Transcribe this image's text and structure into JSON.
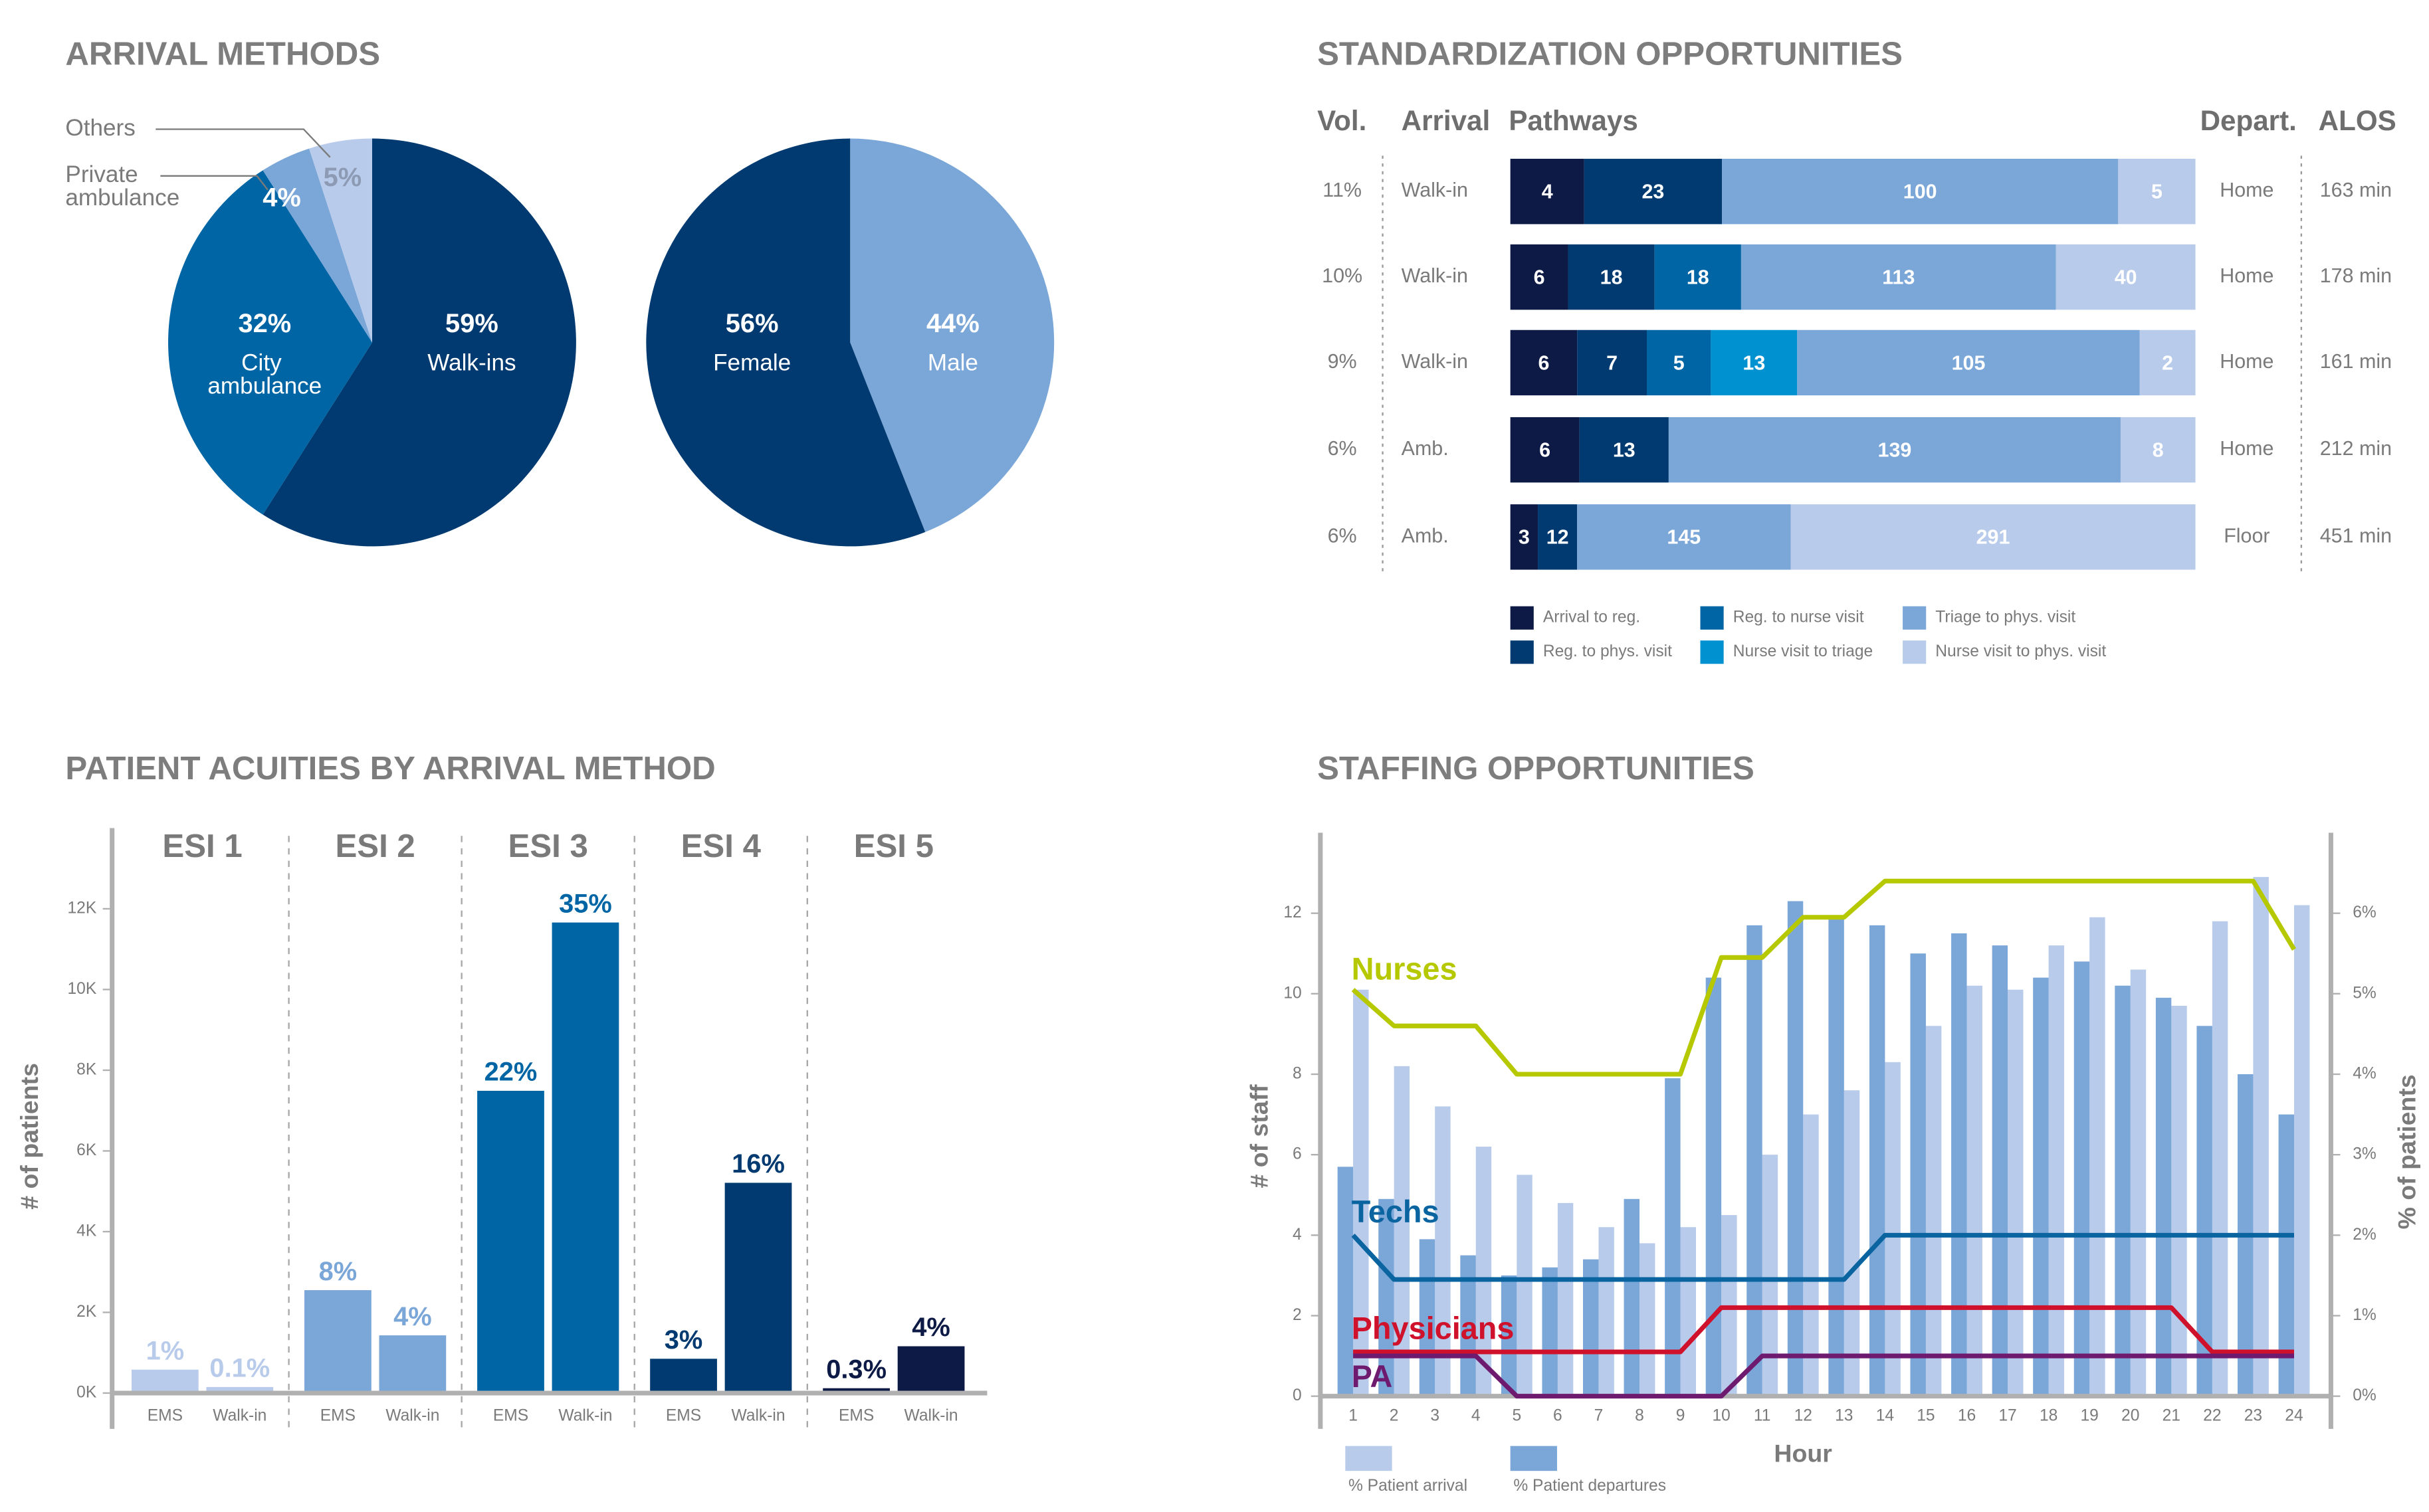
{
  "chart_data": [
    {
      "type": "pie",
      "title": "ARRIVAL METHODS",
      "categories": [
        "Walk-ins",
        "City ambulance",
        "Private ambulance",
        "Others"
      ],
      "values": [
        59,
        32,
        4,
        5
      ],
      "value_labels": [
        "59%",
        "32%",
        "4%",
        "5%"
      ],
      "colors": [
        "#003a70",
        "#0065a4",
        "#7aa6d8",
        "#b8cbeb"
      ]
    },
    {
      "type": "pie",
      "categories": [
        "Male",
        "Female"
      ],
      "values": [
        44,
        56
      ],
      "value_labels": [
        "44%",
        "56%"
      ],
      "colors": [
        "#7aa6d8",
        "#003a70"
      ]
    },
    {
      "type": "stacked_bar",
      "title": "STANDARDIZATION OPPORTUNITIES",
      "columns": [
        "Vol.",
        "Arrival",
        "Pathways",
        "Depart.",
        "ALOS"
      ],
      "volume": [
        "11%",
        "10%",
        "9%",
        "6%",
        "6%"
      ],
      "arrival": [
        "Walk-in",
        "Walk-in",
        "Walk-in",
        "Amb.",
        "Amb."
      ],
      "departure": [
        "Home",
        "Home",
        "Home",
        "Home",
        "Floor"
      ],
      "alos": [
        "163 min",
        "178 min",
        "161 min",
        "212 min",
        "451 min"
      ],
      "series": [
        {
          "name": "Arrival to reg.",
          "color": "#0d1a45",
          "values": [
            4,
            6,
            6,
            6,
            3
          ]
        },
        {
          "name": "Reg. to phys. visit",
          "color": "#003a70",
          "values": [
            23,
            18,
            7,
            13,
            12
          ]
        },
        {
          "name": "Reg. to nurse visit",
          "color": "#0065a4",
          "values": [
            null,
            18,
            5,
            null,
            null
          ]
        },
        {
          "name": "Nurse visit to triage",
          "color": "#0091d0",
          "values": [
            null,
            null,
            13,
            null,
            null
          ]
        },
        {
          "name": "Triage to phys. visit",
          "color": "#7aa6d8",
          "values": [
            100,
            113,
            105,
            139,
            145
          ]
        },
        {
          "name": "Nurse visit to phys. visit",
          "color": "#b8cbeb",
          "values": [
            5,
            40,
            2,
            8,
            291
          ]
        }
      ]
    },
    {
      "type": "grouped_bar",
      "title": "PATIENT ACUITIES BY ARRIVAL METHOD",
      "y_label": "# of patients",
      "categories": [
        "ESI 1",
        "ESI 2",
        "ESI 3",
        "ESI 4",
        "ESI 5"
      ],
      "colors": [
        "#b8cbeb",
        "#7aa6d8",
        "#0065a4",
        "#003a70",
        "#0d1a45"
      ],
      "series": [
        {
          "name": "EMS",
          "values": [
            580,
            2550,
            7490,
            850,
            120
          ],
          "labels": [
            "1%",
            "8%",
            "22%",
            "3%",
            "0.3%"
          ]
        },
        {
          "name": "Walk-in",
          "values": [
            150,
            1430,
            11660,
            5210,
            1160
          ],
          "labels": [
            "0.1%",
            "4%",
            "35%",
            "16%",
            "4%"
          ]
        }
      ],
      "ylim": [
        0,
        14000
      ],
      "yticks": [
        {
          "value": 0,
          "label": "0K"
        },
        {
          "value": 2000,
          "label": "2K"
        },
        {
          "value": 4000,
          "label": "4K"
        },
        {
          "value": 6000,
          "label": "6K"
        },
        {
          "value": 8000,
          "label": "8K"
        },
        {
          "value": 10000,
          "label": "10K"
        },
        {
          "value": 12000,
          "label": "12K"
        }
      ]
    },
    {
      "type": "combo",
      "title": "STAFFING OPPORTUNITIES",
      "x_label": "Hour",
      "y_label": "# of staff",
      "y2_label": "% of patients",
      "x": [
        1,
        2,
        3,
        4,
        5,
        6,
        7,
        8,
        9,
        10,
        11,
        12,
        13,
        14,
        15,
        16,
        17,
        18,
        19,
        20,
        21,
        22,
        23,
        24
      ],
      "xlim": [
        0.2,
        24.9
      ],
      "ylim": [
        0,
        14
      ],
      "yticks": [
        0,
        2,
        4,
        6,
        8,
        10,
        12
      ],
      "y2lim": [
        0,
        7
      ],
      "y2ticks": [
        {
          "value": 0,
          "label": "0%"
        },
        {
          "value": 1,
          "label": "1%"
        },
        {
          "value": 2,
          "label": "2%"
        },
        {
          "value": 3,
          "label": "3%"
        },
        {
          "value": 4,
          "label": "4%"
        },
        {
          "value": 5,
          "label": "5%"
        },
        {
          "value": 6,
          "label": "6%"
        }
      ],
      "series": [
        {
          "name": "% Patient arrival",
          "kind": "bar",
          "axis": "y2",
          "color": "#b8cbeb",
          "values": [
            5.05,
            4.1,
            3.6,
            3.1,
            2.75,
            2.4,
            2.1,
            1.9,
            2.1,
            2.25,
            3.0,
            3.5,
            3.8,
            4.15,
            4.6,
            5.1,
            5.05,
            5.6,
            5.95,
            5.3,
            4.85,
            5.9,
            6.45,
            6.1
          ]
        },
        {
          "name": "% Patient departures",
          "kind": "bar",
          "axis": "y2",
          "color": "#7aa6d8",
          "values": [
            2.85,
            2.45,
            1.95,
            1.75,
            1.5,
            1.6,
            1.7,
            2.45,
            3.95,
            5.2,
            5.85,
            6.15,
            5.95,
            5.85,
            5.5,
            5.75,
            5.6,
            5.2,
            5.4,
            5.1,
            4.95,
            4.6,
            4.0,
            3.5
          ]
        },
        {
          "name": "Nurses",
          "kind": "line",
          "color": "#b5c800",
          "values": [
            10.1,
            9.2,
            9.2,
            9.2,
            8,
            8,
            8,
            8,
            8,
            10.9,
            10.9,
            11.9,
            11.9,
            12.8,
            12.8,
            12.8,
            12.8,
            12.8,
            12.8,
            12.8,
            12.8,
            12.8,
            12.8,
            11.1
          ]
        },
        {
          "name": "Techs",
          "kind": "line",
          "color": "#0a64a0",
          "values": [
            4,
            2.9,
            2.9,
            2.9,
            2.9,
            2.9,
            2.9,
            2.9,
            2.9,
            2.9,
            2.9,
            2.9,
            2.9,
            4,
            4,
            4,
            4,
            4,
            4,
            4,
            4,
            4,
            4,
            4
          ]
        },
        {
          "name": "Physicians",
          "kind": "line",
          "color": "#d0112b",
          "values": [
            1.1,
            1.1,
            1.1,
            1.1,
            1.1,
            1.1,
            1.1,
            1.1,
            1.1,
            2.2,
            2.2,
            2.2,
            2.2,
            2.2,
            2.2,
            2.2,
            2.2,
            2.2,
            2.2,
            2.2,
            2.2,
            1.1,
            1.1,
            1.1
          ]
        },
        {
          "name": "PA",
          "kind": "line",
          "color": "#6e1a6e",
          "values": [
            1,
            1,
            1,
            1,
            0,
            0,
            0,
            0,
            0,
            0,
            1,
            1,
            1,
            1,
            1,
            1,
            1,
            1,
            1,
            1,
            1,
            1,
            1,
            1
          ]
        }
      ]
    }
  ]
}
